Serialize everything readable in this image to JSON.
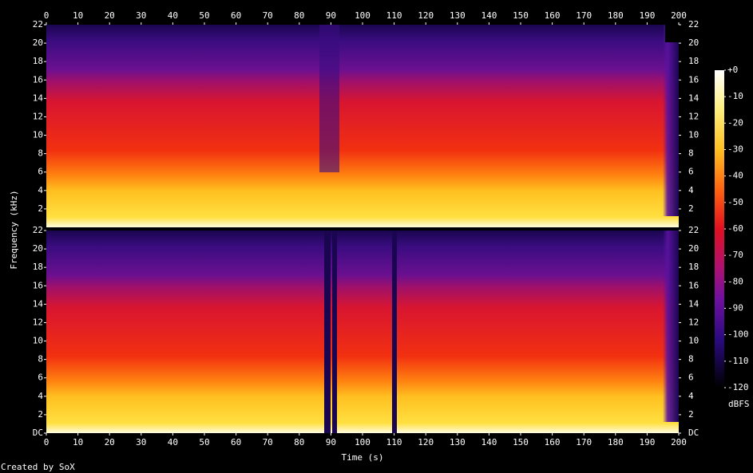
{
  "chart_data": [
    {
      "type": "spectrogram",
      "ylabel": "Frequency (kHz)",
      "xlim": [
        0,
        200
      ],
      "xticks": [
        0,
        10,
        20,
        30,
        40,
        50,
        60,
        70,
        80,
        90,
        100,
        110,
        120,
        130,
        140,
        150,
        160,
        170,
        180,
        190,
        200
      ],
      "ylim": [
        0,
        22
      ],
      "yticks": [
        2,
        4,
        6,
        8,
        10,
        12,
        14,
        16,
        18,
        20,
        22
      ]
    },
    {
      "type": "spectrogram",
      "xlabel": "Time (s)",
      "xlim": [
        0,
        200
      ],
      "xticks": [
        0,
        10,
        20,
        30,
        40,
        50,
        60,
        70,
        80,
        90,
        100,
        110,
        120,
        130,
        140,
        150,
        160,
        170,
        180,
        190,
        200
      ],
      "ylim": [
        0,
        22
      ],
      "yticks": [
        {
          "value": 0,
          "label": "DC"
        },
        2,
        4,
        6,
        8,
        10,
        12,
        14,
        16,
        18,
        20,
        22
      ]
    }
  ],
  "colorbar": {
    "label": "dBFS",
    "lim": [
      -120,
      0
    ],
    "ticks": [
      {
        "value": 0,
        "label": "+0"
      },
      -10,
      -20,
      -30,
      -40,
      -50,
      -60,
      -70,
      -80,
      -90,
      -100,
      -110,
      -120
    ]
  },
  "footer": "Created by SoX"
}
